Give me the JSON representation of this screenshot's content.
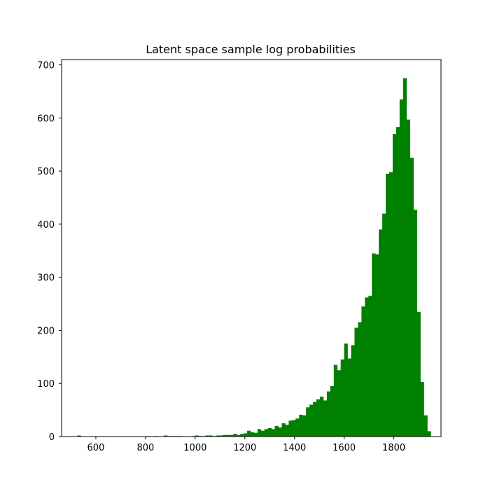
{
  "chart_data": {
    "type": "bar",
    "subtype": "histogram",
    "title": "Latent space sample log probabilities",
    "xlabel": "",
    "ylabel": "",
    "xlim": [
      462,
      1990
    ],
    "ylim": [
      0,
      710
    ],
    "xticks": [
      600,
      800,
      1000,
      1200,
      1400,
      1600,
      1800
    ],
    "yticks": [
      0,
      100,
      200,
      300,
      400,
      500,
      600,
      700
    ],
    "bar_color": "#008000",
    "grid": false,
    "legend": "none",
    "bins": {
      "start": 525,
      "width": 13.96,
      "counts": [
        2,
        0,
        0,
        0,
        0,
        0,
        0,
        0,
        0,
        0,
        0,
        0,
        0,
        0,
        0,
        0,
        0,
        0,
        0,
        0,
        1,
        0,
        1,
        0,
        0,
        2,
        1,
        1,
        1,
        1,
        0,
        0,
        0,
        1,
        2,
        1,
        1,
        2,
        2,
        1,
        2,
        2,
        3,
        3,
        3,
        5,
        3,
        5,
        6,
        11,
        8,
        7,
        14,
        11,
        14,
        16,
        14,
        20,
        17,
        25,
        22,
        30,
        31,
        34,
        41,
        40,
        55,
        60,
        65,
        70,
        75,
        68,
        85,
        95,
        135,
        125,
        145,
        175,
        147,
        172,
        205,
        215,
        245,
        262,
        265,
        345,
        343,
        390,
        420,
        495,
        498,
        570,
        583,
        635,
        675,
        597,
        525,
        427,
        235,
        103,
        40,
        10
      ]
    }
  }
}
